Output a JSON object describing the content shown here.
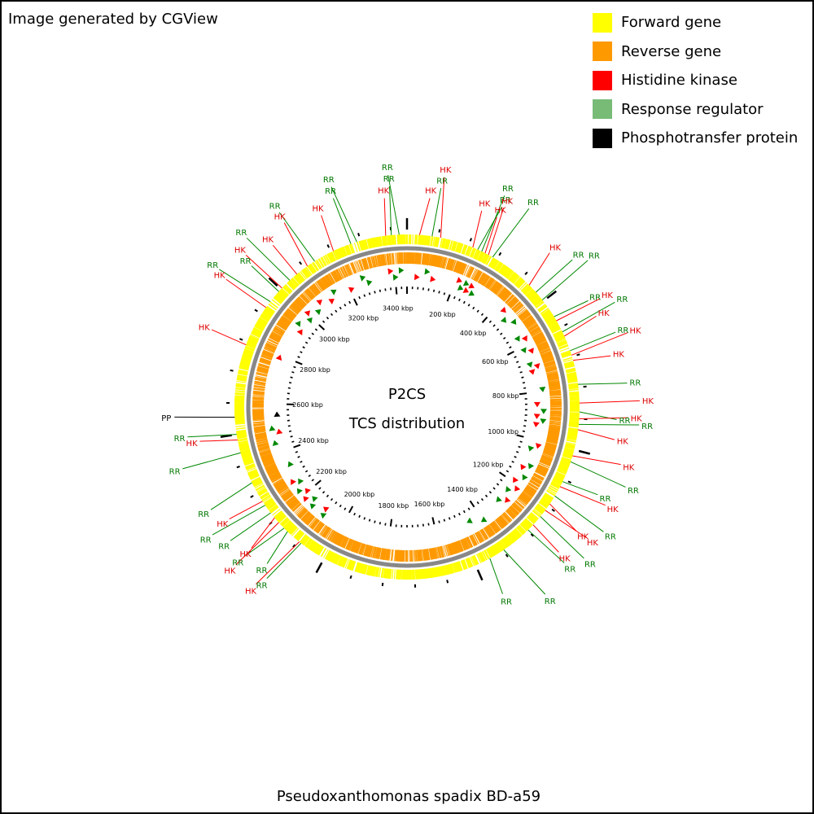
{
  "credit": "Image generated by CGView",
  "legend": [
    {
      "label": "Forward gene",
      "color": "#ffff00"
    },
    {
      "label": "Reverse gene",
      "color": "#ff9900"
    },
    {
      "label": "Histidine kinase",
      "color": "#ff0000"
    },
    {
      "label": "Response regulator",
      "color": "#77bb77"
    },
    {
      "label": "Phosphotransfer protein",
      "color": "#000000"
    }
  ],
  "center": {
    "line1": "P2CS",
    "line2": "TCS distribution"
  },
  "organism": "Pseudoxanthomonas spadix BD-a59",
  "genome": {
    "length_kbp": 3450,
    "tick_labels": [
      "200 kbp",
      "400 kbp",
      "600 kbp",
      "800 kbp",
      "1000 kbp",
      "1200 kbp",
      "1400 kbp",
      "1600 kbp",
      "1800 kbp",
      "2000 kbp",
      "2200 kbp",
      "2400 kbp",
      "2600 kbp",
      "2800 kbp",
      "3000 kbp",
      "3200 kbp",
      "3400 kbp"
    ]
  },
  "colors": {
    "forward": "#ffff00",
    "reverse": "#ff9900",
    "backbone": "#888888",
    "histidine_kinase": "#ff0000",
    "response_regulator": "#008800",
    "phosphotransfer": "#000000",
    "hk_text": "#dd0000",
    "rr_text": "#007700"
  },
  "features": [
    {
      "label": "HK",
      "kbp": 3382
    },
    {
      "label": "RR",
      "kbp": 3400
    },
    {
      "label": "RR",
      "kbp": 3425
    },
    {
      "label": "HK",
      "kbp": 40
    },
    {
      "label": "RR",
      "kbp": 80
    },
    {
      "label": "HK",
      "kbp": 108
    },
    {
      "label": "HK",
      "kbp": 215
    },
    {
      "label": "RR",
      "kbp": 232
    },
    {
      "label": "RR",
      "kbp": 246
    },
    {
      "label": "HK",
      "kbp": 258
    },
    {
      "label": "HK",
      "kbp": 270
    },
    {
      "label": "RR",
      "kbp": 285
    },
    {
      "label": "HK",
      "kbp": 432
    },
    {
      "label": "RR",
      "kbp": 463
    },
    {
      "label": "RR",
      "kbp": 495
    },
    {
      "label": "RR",
      "kbp": 560
    },
    {
      "label": "HK",
      "kbp": 575
    },
    {
      "label": "RR",
      "kbp": 615
    },
    {
      "label": "HK",
      "kbp": 630
    },
    {
      "label": "RR",
      "kbp": 680
    },
    {
      "label": "HK",
      "kbp": 695
    },
    {
      "label": "HK",
      "kbp": 712
    },
    {
      "label": "RR",
      "kbp": 790
    },
    {
      "label": "HK",
      "kbp": 850
    },
    {
      "label": "RR",
      "kbp": 878
    },
    {
      "label": "HK",
      "kbp": 900
    },
    {
      "label": "RR",
      "kbp": 918
    },
    {
      "label": "HK",
      "kbp": 935
    },
    {
      "label": "HK",
      "kbp": 1020
    },
    {
      "label": "RR",
      "kbp": 1040
    },
    {
      "label": "RR",
      "kbp": 1108
    },
    {
      "label": "HK",
      "kbp": 1126
    },
    {
      "label": "RR",
      "kbp": 1160
    },
    {
      "label": "HK",
      "kbp": 1190
    },
    {
      "label": "HK",
      "kbp": 1215
    },
    {
      "label": "RR",
      "kbp": 1240
    },
    {
      "label": "HK",
      "kbp": 1275
    },
    {
      "label": "RR",
      "kbp": 1298
    },
    {
      "label": "RR",
      "kbp": 1398
    },
    {
      "label": "RR",
      "kbp": 1450
    },
    {
      "label": "RR",
      "kbp": 2088
    },
    {
      "label": "HK",
      "kbp": 2095
    },
    {
      "label": "RR",
      "kbp": 2145
    },
    {
      "label": "RR",
      "kbp": 2160
    },
    {
      "label": "HK",
      "kbp": 2185
    },
    {
      "label": "HK",
      "kbp": 2205
    },
    {
      "label": "RR",
      "kbp": 2225
    },
    {
      "label": "RR",
      "kbp": 2255
    },
    {
      "label": "HK",
      "kbp": 2270
    },
    {
      "label": "RR",
      "kbp": 2338
    },
    {
      "label": "RR",
      "kbp": 2440
    },
    {
      "label": "HK",
      "kbp": 2482
    },
    {
      "label": "RR",
      "kbp": 2500
    },
    {
      "label": "PP",
      "kbp": 2555
    },
    {
      "label": "HK",
      "kbp": 2790
    },
    {
      "label": "HK",
      "kbp": 2925
    },
    {
      "label": "RR",
      "kbp": 2948
    },
    {
      "label": "RR",
      "kbp": 2990
    },
    {
      "label": "HK",
      "kbp": 3005
    },
    {
      "label": "RR",
      "kbp": 3040
    },
    {
      "label": "HK",
      "kbp": 3070
    },
    {
      "label": "HK",
      "kbp": 3112
    },
    {
      "label": "RR",
      "kbp": 3140
    },
    {
      "label": "HK",
      "kbp": 3208
    },
    {
      "label": "RR",
      "kbp": 3268
    },
    {
      "label": "RR",
      "kbp": 3288
    }
  ]
}
